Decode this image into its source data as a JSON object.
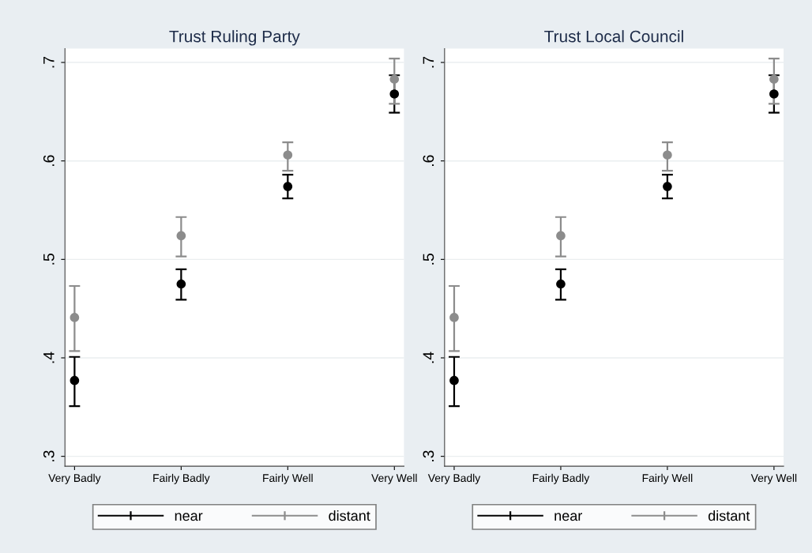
{
  "chart_data": [
    {
      "type": "scatter",
      "title": "Trust Ruling Party",
      "categories": [
        "Very Badly",
        "Fairly Badly",
        "Fairly Well",
        "Very Well"
      ],
      "ylim": [
        0.29,
        0.714
      ],
      "yticks": [
        {
          "value": 0.3,
          "label": ".3"
        },
        {
          "value": 0.4,
          "label": ".4"
        },
        {
          "value": 0.5,
          "label": ".5"
        },
        {
          "value": 0.6,
          "label": ".6"
        },
        {
          "value": 0.7,
          "label": ".7"
        }
      ],
      "grid": "y",
      "legend": "bottom",
      "marker": "circle",
      "series": [
        {
          "name": "near",
          "color": "#000000",
          "values": [
            0.377,
            0.475,
            0.574,
            0.668
          ],
          "errors": [
            [
              0.351,
              0.401
            ],
            [
              0.459,
              0.49
            ],
            [
              0.562,
              0.586
            ],
            [
              0.649,
              0.687
            ]
          ]
        },
        {
          "name": "distant",
          "color": "#8c8c8c",
          "values": [
            0.441,
            0.524,
            0.606,
            0.683
          ],
          "errors": [
            [
              0.407,
              0.473
            ],
            [
              0.503,
              0.543
            ],
            [
              0.59,
              0.619
            ],
            [
              0.658,
              0.704
            ]
          ]
        }
      ]
    },
    {
      "type": "scatter",
      "title": "Trust Local Council",
      "categories": [
        "Very Badly",
        "Fairly Badly",
        "Fairly Well",
        "Very Well"
      ],
      "ylim": [
        0.29,
        0.714
      ],
      "yticks": [
        {
          "value": 0.3,
          "label": ".3"
        },
        {
          "value": 0.4,
          "label": ".4"
        },
        {
          "value": 0.5,
          "label": ".5"
        },
        {
          "value": 0.6,
          "label": ".6"
        },
        {
          "value": 0.7,
          "label": ".7"
        }
      ],
      "grid": "y",
      "legend": "bottom",
      "marker": "circle",
      "series": [
        {
          "name": "near",
          "color": "#000000",
          "values": [
            0.377,
            0.475,
            0.574,
            0.668
          ],
          "errors": [
            [
              0.351,
              0.401
            ],
            [
              0.459,
              0.49
            ],
            [
              0.562,
              0.586
            ],
            [
              0.649,
              0.687
            ]
          ]
        },
        {
          "name": "distant",
          "color": "#8c8c8c",
          "values": [
            0.441,
            0.524,
            0.606,
            0.683
          ],
          "errors": [
            [
              0.407,
              0.473
            ],
            [
              0.503,
              0.543
            ],
            [
              0.59,
              0.619
            ],
            [
              0.658,
              0.704
            ]
          ]
        }
      ]
    }
  ]
}
